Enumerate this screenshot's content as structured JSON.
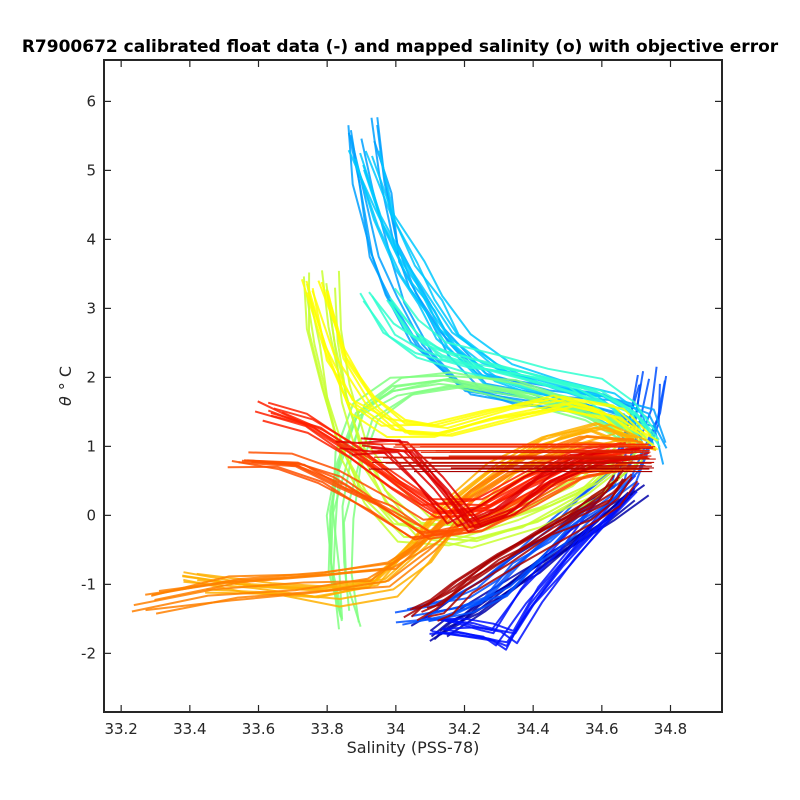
{
  "chart_data": {
    "type": "line",
    "title": "R7900672 calibrated float data (-) and mapped salinity (o) with objective error",
    "xlabel": "Salinity (PSS-78)",
    "ylabel_symbol": "θ",
    "ylabel_unit": "° C",
    "xlim": [
      33.15,
      34.95
    ],
    "ylim": [
      -2.85,
      6.6
    ],
    "xticks": [
      33.2,
      33.4,
      33.6,
      33.8,
      34.0,
      34.2,
      34.4,
      34.6,
      34.8
    ],
    "xtick_labels": [
      "33.2",
      "33.4",
      "33.6",
      "33.8",
      "34",
      "34.2",
      "34.4",
      "34.6",
      "34.8"
    ],
    "yticks": [
      -2,
      -1,
      0,
      1,
      2,
      3,
      4,
      5,
      6
    ],
    "ytick_labels": [
      "-2",
      "-1",
      "0",
      "1",
      "2",
      "3",
      "4",
      "5",
      "6"
    ],
    "grid": false,
    "colormap": "jet (profile number)",
    "series": [
      {
        "color": "#0000a8",
        "points": [
          [
            34.1,
            -1.7
          ],
          [
            34.15,
            -1.55
          ],
          [
            34.22,
            -1.35
          ],
          [
            34.3,
            -1.05
          ],
          [
            34.4,
            -0.7
          ],
          [
            34.5,
            -0.35
          ],
          [
            34.6,
            0.0
          ],
          [
            34.68,
            0.35
          ]
        ]
      },
      {
        "color": "#0010ff",
        "points": [
          [
            34.12,
            -1.6
          ],
          [
            34.2,
            -1.65
          ],
          [
            34.28,
            -1.7
          ],
          [
            34.32,
            -1.8
          ],
          [
            34.4,
            -1.2
          ],
          [
            34.5,
            -0.6
          ],
          [
            34.6,
            -0.05
          ],
          [
            34.68,
            0.4
          ]
        ]
      },
      {
        "color": "#0050ff",
        "points": [
          [
            34.05,
            -1.45
          ],
          [
            34.18,
            -1.3
          ],
          [
            34.28,
            -1.1
          ],
          [
            34.38,
            -0.6
          ],
          [
            34.48,
            -0.2
          ],
          [
            34.58,
            0.25
          ],
          [
            34.66,
            0.55
          ],
          [
            34.72,
            1.4
          ],
          [
            34.74,
            2.0
          ]
        ]
      },
      {
        "color": "#00a0ff",
        "points": [
          [
            33.9,
            5.6
          ],
          [
            33.93,
            4.8
          ],
          [
            33.97,
            3.8
          ],
          [
            34.02,
            3.2
          ],
          [
            34.1,
            2.5
          ],
          [
            34.22,
            1.9
          ],
          [
            34.4,
            1.7
          ],
          [
            34.58,
            1.6
          ],
          [
            34.7,
            1.4
          ],
          [
            34.73,
            0.9
          ]
        ]
      },
      {
        "color": "#00c8ff",
        "points": [
          [
            33.92,
            5.2
          ],
          [
            33.98,
            4.3
          ],
          [
            34.05,
            3.6
          ],
          [
            34.12,
            3.1
          ],
          [
            34.18,
            2.6
          ],
          [
            34.3,
            2.1
          ],
          [
            34.45,
            1.85
          ],
          [
            34.6,
            1.65
          ],
          [
            34.72,
            1.3
          ]
        ]
      },
      {
        "color": "#30ffd0",
        "points": [
          [
            33.95,
            3.2
          ],
          [
            34.02,
            2.7
          ],
          [
            34.1,
            2.4
          ],
          [
            34.25,
            2.2
          ],
          [
            34.4,
            2.05
          ],
          [
            34.55,
            1.85
          ],
          [
            34.66,
            1.55
          ],
          [
            34.72,
            1.1
          ]
        ]
      },
      {
        "color": "#80ff80",
        "points": [
          [
            33.85,
            -1.5
          ],
          [
            33.82,
            -0.8
          ],
          [
            33.82,
            0.0
          ],
          [
            33.85,
            0.8
          ],
          [
            33.9,
            1.5
          ],
          [
            34.0,
            1.85
          ],
          [
            34.15,
            1.95
          ],
          [
            34.35,
            1.8
          ],
          [
            34.55,
            1.5
          ],
          [
            34.7,
            1.1
          ]
        ]
      },
      {
        "color": "#c8ff30",
        "points": [
          [
            33.78,
            3.4
          ],
          [
            33.8,
            2.6
          ],
          [
            33.83,
            1.8
          ],
          [
            33.88,
            1.0
          ],
          [
            33.95,
            0.3
          ],
          [
            34.05,
            -0.2
          ],
          [
            34.2,
            -0.3
          ],
          [
            34.4,
            0.0
          ],
          [
            34.55,
            0.4
          ],
          [
            34.68,
            0.9
          ]
        ]
      },
      {
        "color": "#ffff00",
        "points": [
          [
            33.76,
            3.3
          ],
          [
            33.82,
            2.3
          ],
          [
            33.9,
            1.6
          ],
          [
            34.0,
            1.25
          ],
          [
            34.12,
            1.2
          ],
          [
            34.3,
            1.45
          ],
          [
            34.48,
            1.6
          ],
          [
            34.62,
            1.45
          ],
          [
            34.72,
            1.05
          ]
        ]
      },
      {
        "color": "#ffb000",
        "points": [
          [
            33.4,
            -1.0
          ],
          [
            33.6,
            -1.1
          ],
          [
            33.8,
            -1.2
          ],
          [
            33.95,
            -1.05
          ],
          [
            34.05,
            -0.6
          ],
          [
            34.15,
            0.0
          ],
          [
            34.3,
            0.6
          ],
          [
            34.45,
            1.0
          ],
          [
            34.6,
            1.2
          ],
          [
            34.7,
            1.0
          ]
        ]
      },
      {
        "color": "#ff8000",
        "points": [
          [
            33.26,
            -1.25
          ],
          [
            33.5,
            -1.05
          ],
          [
            33.75,
            -0.95
          ],
          [
            33.95,
            -0.85
          ],
          [
            34.08,
            -0.4
          ],
          [
            34.2,
            0.2
          ],
          [
            34.35,
            0.7
          ],
          [
            34.52,
            1.0
          ],
          [
            34.68,
            0.95
          ]
        ]
      },
      {
        "color": "#ff5000",
        "points": [
          [
            33.55,
            0.85
          ],
          [
            33.7,
            0.8
          ],
          [
            33.82,
            0.55
          ],
          [
            33.95,
            0.2
          ],
          [
            34.08,
            -0.2
          ],
          [
            34.22,
            -0.1
          ],
          [
            34.38,
            0.3
          ],
          [
            34.52,
            0.65
          ],
          [
            34.68,
            0.8
          ]
        ]
      },
      {
        "color": "#ff2000",
        "points": [
          [
            33.62,
            1.5
          ],
          [
            33.75,
            1.3
          ],
          [
            33.88,
            0.9
          ],
          [
            34.0,
            0.45
          ],
          [
            34.12,
            0.05
          ],
          [
            34.25,
            0.1
          ],
          [
            34.4,
            0.5
          ],
          [
            34.55,
            0.8
          ],
          [
            34.68,
            0.9
          ]
        ]
      },
      {
        "color": "#e00000",
        "points": [
          [
            33.88,
            0.95
          ],
          [
            34.0,
            0.9
          ],
          [
            34.1,
            0.4
          ],
          [
            34.2,
            -0.2
          ],
          [
            34.3,
            0.0
          ],
          [
            34.42,
            0.45
          ],
          [
            34.55,
            0.75
          ],
          [
            34.7,
            0.85
          ]
        ]
      },
      {
        "color": "#a80000",
        "points": [
          [
            34.08,
            -1.4
          ],
          [
            34.12,
            -1.3
          ],
          [
            34.2,
            -1.0
          ],
          [
            34.32,
            -0.6
          ],
          [
            34.45,
            -0.2
          ],
          [
            34.55,
            0.05
          ],
          [
            34.63,
            0.3
          ],
          [
            34.68,
            0.6
          ]
        ]
      }
    ],
    "mapped_band": {
      "color_from": "#ff3000",
      "color_to": "#a80000",
      "x_range": [
        33.92,
        34.76
      ],
      "y_range": [
        0.65,
        1.05
      ]
    }
  }
}
